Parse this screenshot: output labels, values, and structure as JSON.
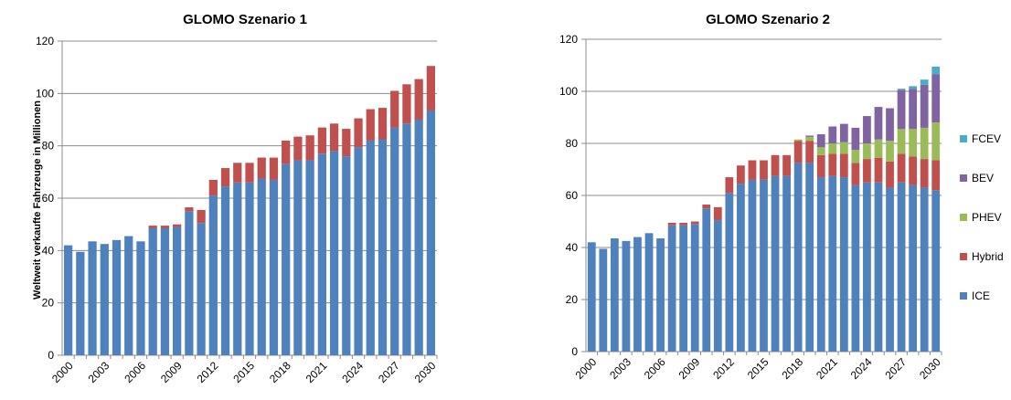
{
  "chart_data": [
    {
      "type": "bar",
      "stacked": true,
      "title": "GLOMO Szenario 1",
      "ylabel": "Weltweit verkaufte Fahrzeuge in Millionen",
      "xlabel": "",
      "ylim": [
        0,
        120
      ],
      "yticks": [
        0,
        20,
        40,
        60,
        80,
        100,
        120
      ],
      "grid": "horizontal",
      "legend": "none",
      "categories": [
        "2000",
        "2001",
        "2002",
        "2003",
        "2004",
        "2005",
        "2006",
        "2007",
        "2008",
        "2009",
        "2010",
        "2011",
        "2012",
        "2013",
        "2014",
        "2015",
        "2016",
        "2017",
        "2018",
        "2019",
        "2020",
        "2021",
        "2022",
        "2023",
        "2024",
        "2025",
        "2026",
        "2027",
        "2028",
        "2029",
        "2030"
      ],
      "x_tick_labels": [
        "2000",
        "2003",
        "2006",
        "2009",
        "2012",
        "2015",
        "2018",
        "2021",
        "2024",
        "2027",
        "2030"
      ],
      "series": [
        {
          "name": "ICE",
          "color": "#4F81BD",
          "values": [
            42,
            39.5,
            43.5,
            42.5,
            44,
            45.5,
            43.5,
            48.5,
            48.5,
            49,
            55,
            50.5,
            61,
            64.5,
            66,
            66,
            67.5,
            67,
            73,
            74.5,
            74.5,
            77,
            78,
            76,
            79.5,
            82,
            82.5,
            87,
            88.5,
            90,
            93.5
          ]
        },
        {
          "name": "Hybrid",
          "color": "#C0504D",
          "values": [
            0,
            0,
            0,
            0,
            0,
            0,
            0,
            1,
            1,
            1,
            1.5,
            5,
            6,
            7,
            7.5,
            7.5,
            8,
            8.5,
            9,
            9,
            9.5,
            10,
            10.5,
            10.5,
            11,
            12,
            12,
            14,
            15,
            15.5,
            17
          ]
        }
      ]
    },
    {
      "type": "bar",
      "stacked": true,
      "title": "GLOMO Szenario 2",
      "ylabel": "",
      "xlabel": "",
      "ylim": [
        0,
        120
      ],
      "yticks": [
        0,
        20,
        40,
        60,
        80,
        100,
        120
      ],
      "grid": "horizontal",
      "legend": "right",
      "categories": [
        "2000",
        "2001",
        "2002",
        "2003",
        "2004",
        "2005",
        "2006",
        "2007",
        "2008",
        "2009",
        "2010",
        "2011",
        "2012",
        "2013",
        "2014",
        "2015",
        "2016",
        "2017",
        "2018",
        "2019",
        "2020",
        "2021",
        "2022",
        "2023",
        "2024",
        "2025",
        "2026",
        "2027",
        "2028",
        "2029",
        "2030"
      ],
      "x_tick_labels": [
        "2000",
        "2003",
        "2006",
        "2009",
        "2012",
        "2015",
        "2018",
        "2021",
        "2024",
        "2027",
        "2030"
      ],
      "series": [
        {
          "name": "ICE",
          "color": "#4F81BD",
          "values": [
            42,
            39.5,
            43.5,
            42.5,
            44,
            45.5,
            43.5,
            48.5,
            48.5,
            49,
            55,
            50.5,
            61,
            64.5,
            66,
            66,
            67.5,
            67.5,
            72.5,
            72.5,
            67,
            67.5,
            67,
            64,
            65,
            65,
            63,
            65,
            64,
            63,
            62
          ]
        },
        {
          "name": "Hybrid",
          "color": "#C0504D",
          "values": [
            0,
            0,
            0,
            0,
            0,
            0,
            0,
            1,
            1,
            1,
            1.5,
            5,
            6,
            7,
            7.5,
            7.5,
            8,
            8,
            8.5,
            8.5,
            8.5,
            8.5,
            9,
            8.5,
            9,
            9.5,
            10,
            11,
            11,
            11,
            11.5
          ]
        },
        {
          "name": "PHEV",
          "color": "#9BBB59",
          "values": [
            0,
            0,
            0,
            0,
            0,
            0,
            0,
            0,
            0,
            0,
            0,
            0,
            0,
            0,
            0,
            0,
            0,
            0,
            0.5,
            1.5,
            3,
            4,
            4.5,
            5,
            6,
            7,
            8,
            9.5,
            10.5,
            12,
            14.5
          ]
        },
        {
          "name": "BEV",
          "color": "#8064A2",
          "values": [
            0,
            0,
            0,
            0,
            0,
            0,
            0,
            0,
            0,
            0,
            0,
            0,
            0,
            0,
            0,
            0,
            0,
            0,
            0,
            0.5,
            5,
            6.5,
            7,
            8.5,
            10.5,
            12.5,
            12.5,
            15,
            15.5,
            16.5,
            18.5
          ]
        },
        {
          "name": "FCEV",
          "color": "#4BACC6",
          "values": [
            0,
            0,
            0,
            0,
            0,
            0,
            0,
            0,
            0,
            0,
            0,
            0,
            0,
            0,
            0,
            0,
            0,
            0,
            0,
            0,
            0,
            0,
            0,
            0,
            0,
            0,
            0,
            0.5,
            1,
            2,
            3
          ]
        }
      ]
    }
  ]
}
